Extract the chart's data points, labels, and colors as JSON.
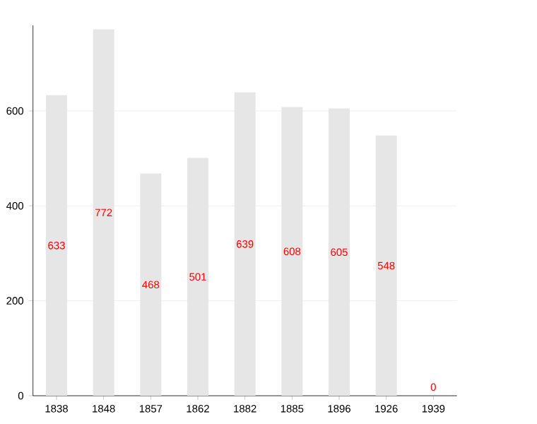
{
  "chart_data": {
    "type": "bar",
    "categories": [
      "1838",
      "1848",
      "1857",
      "1862",
      "1882",
      "1885",
      "1896",
      "1926",
      "1939"
    ],
    "values": [
      633,
      772,
      468,
      501,
      639,
      608,
      605,
      548,
      0
    ],
    "value_labels": [
      "633",
      "772",
      "468",
      "501",
      "639",
      "608",
      "605",
      "548",
      "0"
    ],
    "color": "#e6e6e6",
    "ylim": [
      0,
      780
    ],
    "yticks": [
      0,
      200,
      400,
      600
    ],
    "grid": "y"
  }
}
